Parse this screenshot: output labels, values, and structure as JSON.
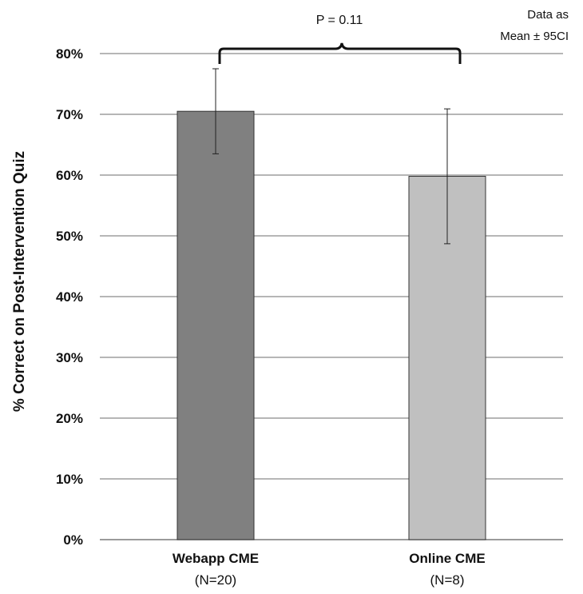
{
  "chart_data": {
    "type": "bar",
    "categories": [
      "Webapp CME",
      "Online CME"
    ],
    "category_sublabels": [
      "(N=20)",
      "(N=8)"
    ],
    "values": [
      70.5,
      59.8
    ],
    "error_low": [
      63.5,
      48.7
    ],
    "error_high": [
      77.5,
      70.9
    ],
    "bar_colors": [
      "#808080",
      "#c0c0c0"
    ],
    "ylabel": "% Correct on Post-Intervention Quiz",
    "xlabel": "",
    "ylim": [
      0,
      80
    ],
    "yticks": [
      0,
      10,
      20,
      30,
      40,
      50,
      60,
      70,
      80
    ],
    "ytick_labels": [
      "0%",
      "10%",
      "20%",
      "30%",
      "40%",
      "50%",
      "60%",
      "70%",
      "80%"
    ],
    "grid": true,
    "legend": "none",
    "annotations": {
      "significance": "P = 0.11",
      "note_line1": "Data as",
      "note_line2": "Mean ± 95CI"
    }
  }
}
